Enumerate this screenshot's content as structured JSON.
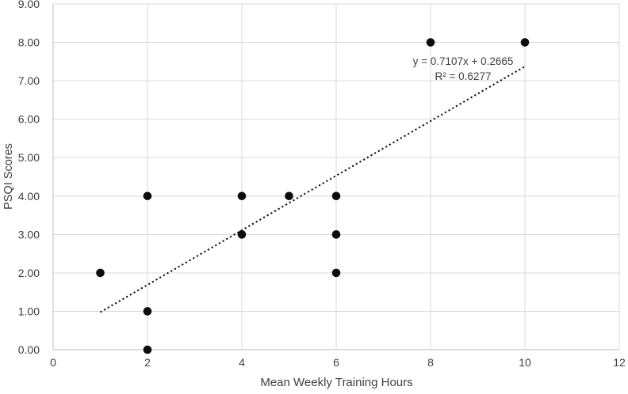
{
  "chart_data": {
    "type": "scatter",
    "title": "",
    "xlabel": "Mean Weekly Training Hours",
    "ylabel": "PSQI Scores",
    "xlim": [
      0,
      12
    ],
    "ylim": [
      0,
      9
    ],
    "grid": true,
    "legend": "none",
    "xticks": {
      "values": [
        0,
        2,
        4,
        6,
        8,
        10,
        12
      ],
      "labels": [
        "0",
        "2",
        "4",
        "6",
        "8",
        "10",
        "12"
      ]
    },
    "yticks": {
      "values": [
        0,
        1,
        2,
        3,
        4,
        5,
        6,
        7,
        8,
        9
      ],
      "labels": [
        "0.00",
        "1.00",
        "2.00",
        "3.00",
        "4.00",
        "5.00",
        "6.00",
        "7.00",
        "8.00",
        "9.00"
      ]
    },
    "points": [
      [
        1,
        2
      ],
      [
        2,
        0
      ],
      [
        2,
        1
      ],
      [
        2,
        4
      ],
      [
        4,
        3
      ],
      [
        4,
        4
      ],
      [
        5,
        4
      ],
      [
        6,
        2
      ],
      [
        6,
        3
      ],
      [
        6,
        4
      ],
      [
        8,
        8
      ],
      [
        10,
        8
      ]
    ],
    "trendline": {
      "equation": "y = 0.7107x + 0.2665",
      "r_squared": "R² = 0.6277",
      "slope": 0.7107,
      "intercept": 0.2665,
      "x_start": 1,
      "x_end": 10,
      "style": "dotted"
    },
    "colors": {
      "point": "#0d0d0d",
      "trendline": "#0d0d0d",
      "gridline": "#d9d9d9",
      "axis_line": "#bfbfbf",
      "tick_text": "#404040",
      "annotation_text": "#404040"
    }
  }
}
